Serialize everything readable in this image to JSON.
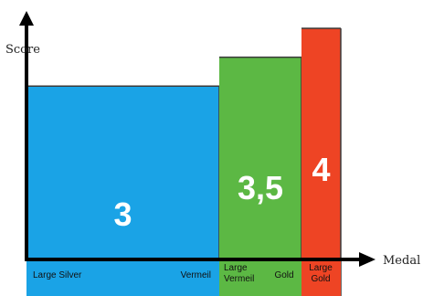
{
  "chart_data": {
    "type": "bar",
    "title": "",
    "ylabel": "Score",
    "xlabel": "Medal",
    "ylim": [
      0,
      4.3
    ],
    "bars": [
      {
        "value": 3,
        "value_label": "3",
        "color": "#1aa3e6"
      },
      {
        "value": 3.5,
        "value_label": "3,5",
        "color": "#5cb844"
      },
      {
        "value": 4,
        "value_label": "4",
        "color": "#ee4424"
      }
    ],
    "category_labels": [
      {
        "lines": [
          "Large Silver"
        ]
      },
      {
        "lines": [
          "Vermeil"
        ]
      },
      {
        "lines": [
          "Large",
          "Vermeil"
        ]
      },
      {
        "lines": [
          "Gold"
        ]
      },
      {
        "lines": [
          "Large",
          "Gold"
        ]
      }
    ]
  }
}
